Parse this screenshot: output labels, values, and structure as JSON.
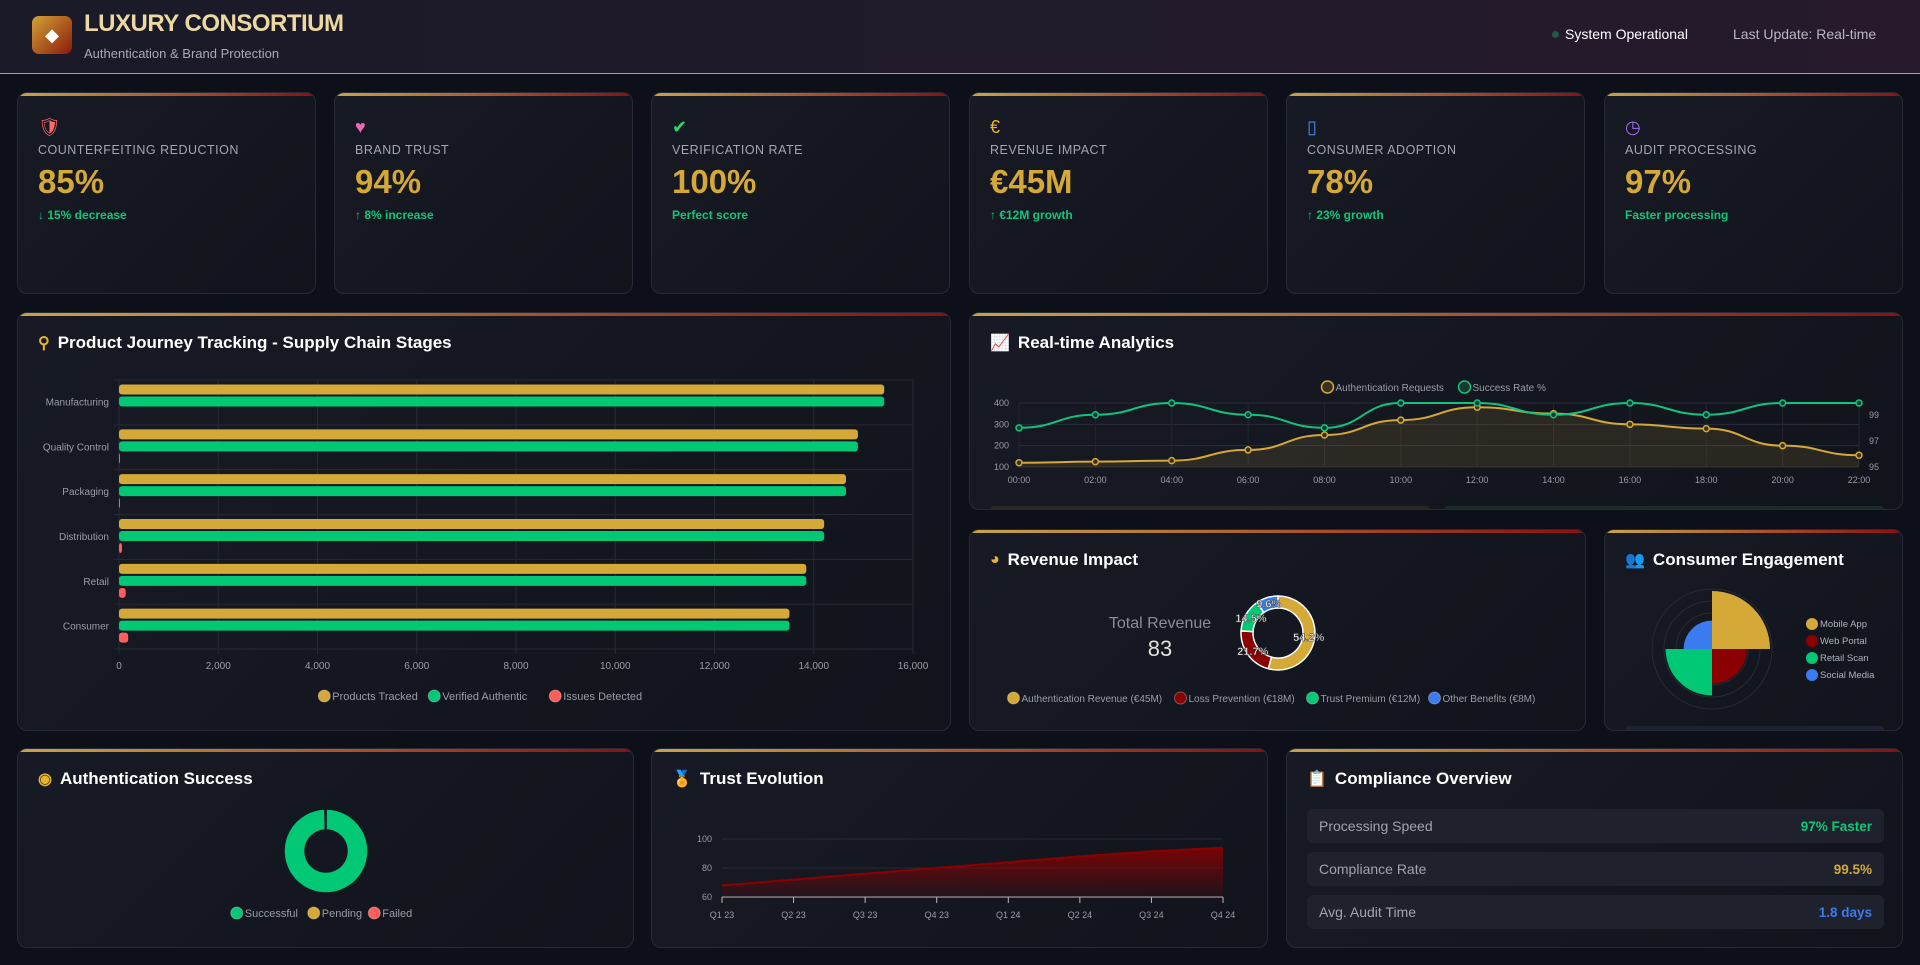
{
  "header": {
    "logo_icon": "gem-icon",
    "title": "LUXURY CONSORTIUM",
    "subtitle": "Authentication & Brand Protection",
    "status": "System Operational",
    "last_update": "Last Update: Real-time"
  },
  "colors": {
    "gold": "#d4a937",
    "green": "#00c875",
    "red": "#ff5c5c",
    "dark_red": "#8b0000",
    "blue": "#3b7bf0",
    "accent_gradient": [
      "#c9a449",
      "#8b1010"
    ]
  },
  "kpis": [
    {
      "icon": "shield-icon",
      "icon_color": "#ff6b6b",
      "label": "COUNTERFEITING REDUCTION",
      "value": "85%",
      "change": "↓ 15% decrease"
    },
    {
      "icon": "heart-icon",
      "icon_color": "#f067b5",
      "label": "BRAND TRUST",
      "value": "94%",
      "change": "↑ 8% increase"
    },
    {
      "icon": "check-circle-icon",
      "icon_color": "#2fd46a",
      "label": "VERIFICATION RATE",
      "value": "100%",
      "change": "Perfect score"
    },
    {
      "icon": "euro-icon",
      "icon_color": "#e7b52c",
      "label": "REVENUE IMPACT",
      "value": "€45M",
      "change": "↑ €12M growth"
    },
    {
      "icon": "mobile-icon",
      "icon_color": "#4a8ff0",
      "label": "CONSUMER ADOPTION",
      "value": "78%",
      "change": "↑ 23% growth"
    },
    {
      "icon": "gauge-icon",
      "icon_color": "#a66ef0",
      "label": "AUDIT PROCESSING",
      "value": "97%",
      "change": "Faster processing"
    }
  ],
  "cards": {
    "journey": {
      "title": "Product Journey Tracking - Supply Chain Stages",
      "icon": "route-icon"
    },
    "realtime": {
      "title": "Real-time Analytics",
      "icon": "chart-line-icon"
    },
    "revenue": {
      "title": "Revenue Impact",
      "icon": "chart-pie-icon",
      "center_label": "Total Revenue",
      "center_value": "83"
    },
    "engagement": {
      "title": "Consumer Engagement",
      "icon": "users-icon"
    },
    "auth": {
      "title": "Authentication Success",
      "icon": "fingerprint-icon"
    },
    "trust": {
      "title": "Trust Evolution",
      "icon": "award-icon"
    },
    "compliance": {
      "title": "Compliance Overview",
      "icon": "clipboard-check-icon",
      "rows": [
        {
          "label": "Processing Speed",
          "value": "97% Faster",
          "color": "#12c57a"
        },
        {
          "label": "Compliance Rate",
          "value": "99.5%",
          "color": "#d4a937"
        },
        {
          "label": "Avg. Audit Time",
          "value": "1.8 days",
          "color": "#3b7bf0"
        }
      ]
    }
  },
  "chart_data": [
    {
      "id": "journey",
      "type": "bar",
      "orientation": "horizontal",
      "categories": [
        "Manufacturing",
        "Quality Control",
        "Packaging",
        "Distribution",
        "Retail",
        "Consumer"
      ],
      "series": [
        {
          "name": "Products Tracked",
          "color": "#d4a937",
          "values": [
            15420,
            14890,
            14650,
            14210,
            13850,
            13510
          ]
        },
        {
          "name": "Verified Authentic",
          "color": "#00c875",
          "values": [
            15420,
            14890,
            14650,
            14210,
            13850,
            13510
          ]
        },
        {
          "name": "Issues Detected",
          "color": "#ff5c5c",
          "values": [
            0,
            5,
            12,
            60,
            135,
            185
          ]
        }
      ],
      "xlim": [
        0,
        16000
      ],
      "xticks": [
        "0",
        "2,000",
        "4,000",
        "6,000",
        "8,000",
        "10,000",
        "12,000",
        "14,000",
        "16,000"
      ],
      "grid": true,
      "legend": "bottom"
    },
    {
      "id": "realtime",
      "type": "line",
      "x": [
        "00:00",
        "02:00",
        "04:00",
        "06:00",
        "08:00",
        "10:00",
        "12:00",
        "14:00",
        "16:00",
        "18:00",
        "20:00",
        "22:00"
      ],
      "series": [
        {
          "name": "Authentication Requests",
          "color": "#d4a937",
          "axis": "left",
          "fill": true,
          "values": [
            120,
            125,
            130,
            180,
            250,
            320,
            380,
            350,
            300,
            280,
            200,
            155
          ]
        },
        {
          "name": "Success Rate %",
          "color": "#10c47e",
          "axis": "right",
          "values": [
            98.0,
            99.0,
            99.9,
            99.0,
            98.0,
            99.9,
            99.9,
            99.0,
            99.9,
            99.0,
            99.9,
            99.9
          ]
        }
      ],
      "ylim": [
        100,
        400
      ],
      "yticks": [
        "100",
        "200",
        "300",
        "400"
      ],
      "y2lim": [
        95,
        99.9
      ],
      "y2ticks": [
        "95",
        "97",
        "99"
      ],
      "grid": true,
      "legend": "top"
    },
    {
      "id": "revenue",
      "type": "pie",
      "donut": true,
      "labels": [
        "Authentication Revenue (€45M)",
        "Loss Prevention (€18M)",
        "Trust Premium (€12M)",
        "Other Benefits (€8M)"
      ],
      "values": [
        45,
        18,
        12,
        8
      ],
      "percent_labels": [
        "54.2%",
        "21.7%",
        "14.5%",
        "9.6%"
      ],
      "colors": [
        "#d4a937",
        "#8b0000",
        "#00c875",
        "#3b7bf0"
      ],
      "legend": "bottom"
    },
    {
      "id": "engagement",
      "type": "polarArea",
      "labels": [
        "Mobile App",
        "Web Portal",
        "Retail Scan",
        "Social Media"
      ],
      "values": [
        45,
        27,
        36,
        22
      ],
      "colors": [
        "#d4a937",
        "#8b0000",
        "#00c875",
        "#3b7bf0"
      ],
      "legend": "right"
    },
    {
      "id": "auth",
      "type": "pie",
      "donut": true,
      "labels": [
        "Successful",
        "Pending",
        "Failed"
      ],
      "values": [
        99.6,
        0.2,
        0.2
      ],
      "colors": [
        "#00c875",
        "#d4a937",
        "#ff5c5c"
      ],
      "legend": "bottom"
    },
    {
      "id": "trust",
      "type": "area",
      "x": [
        "Q1 23",
        "Q2 23",
        "Q3 23",
        "Q4 23",
        "Q1 24",
        "Q2 24",
        "Q3 24",
        "Q4 24"
      ],
      "values": [
        68,
        72,
        76,
        80,
        84,
        88,
        91.5,
        94
      ],
      "color": "#8b0000",
      "ylim": [
        60,
        100
      ],
      "yticks": [
        "60",
        "80",
        "100"
      ],
      "grid": true
    }
  ]
}
